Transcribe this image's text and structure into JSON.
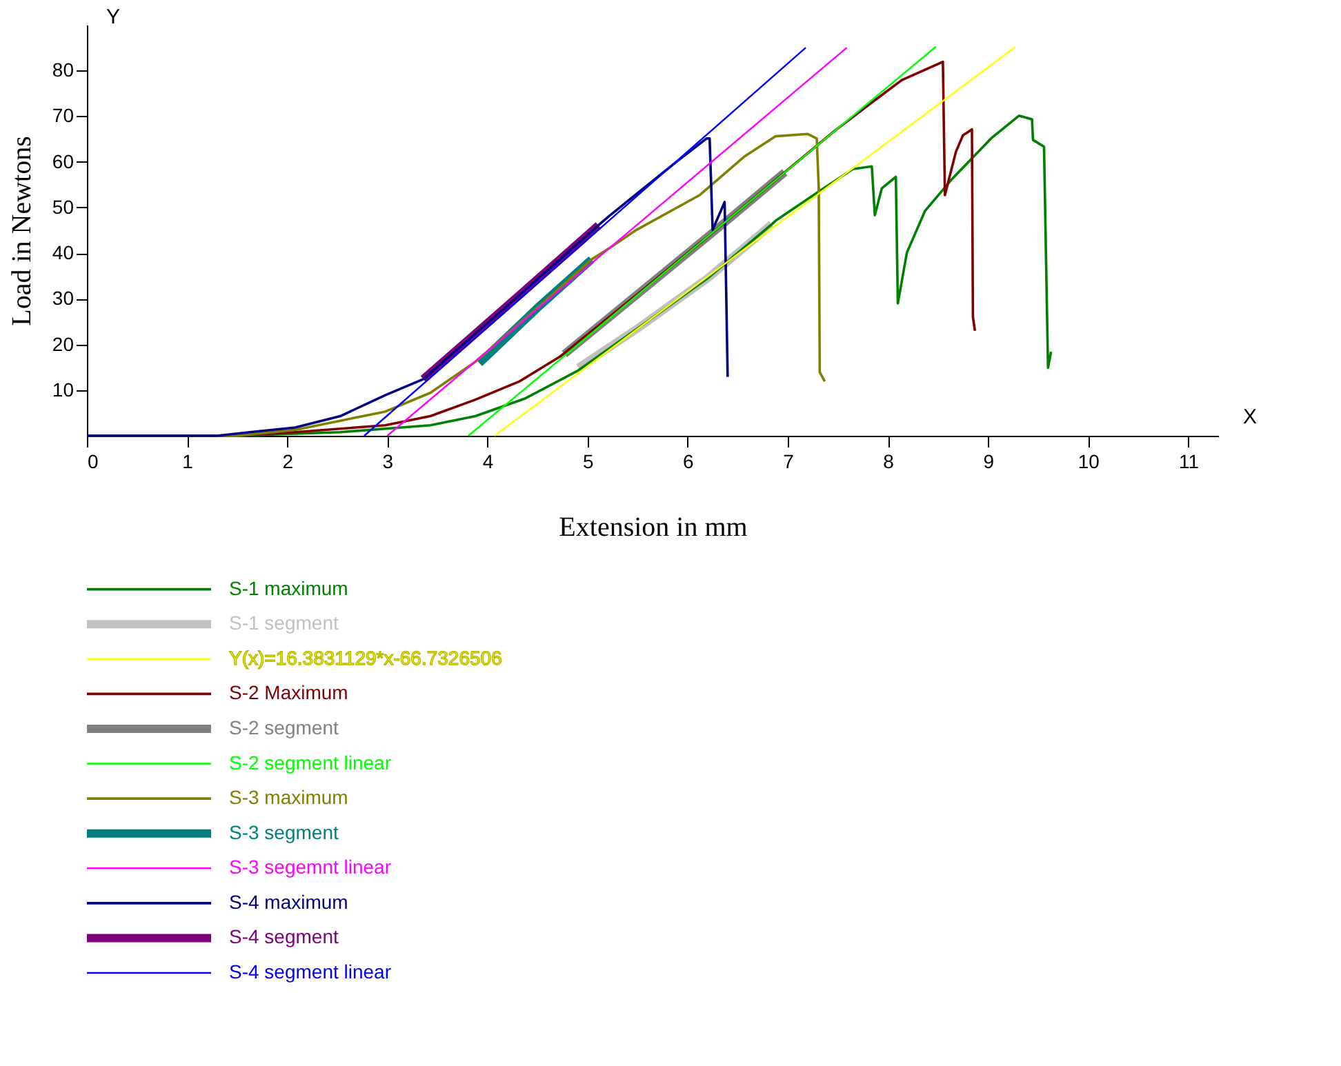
{
  "chart_data": {
    "type": "line",
    "xlabel": "Extension in mm",
    "ylabel": "Load in Newtons",
    "annotations": [
      "X",
      "Y"
    ],
    "xlim": [
      0,
      11.3
    ],
    "ylim": [
      0,
      90
    ],
    "xticks": [
      0,
      1,
      2,
      3,
      4,
      5,
      6,
      7,
      8,
      9,
      10,
      11
    ],
    "yticks": [
      10,
      20,
      30,
      40,
      50,
      60,
      70,
      80
    ],
    "grid": false,
    "legend": "bottom",
    "series": [
      {
        "name": "S-1 maximum",
        "color": "#008000",
        "x": [
          0,
          1.5,
          2.53,
          3.43,
          3.88,
          4.38,
          4.9,
          5.5,
          6.2,
          6.84,
          6.88,
          7.29,
          7.65,
          7.84,
          7.87,
          7.94,
          8.08,
          8.1,
          8.19,
          8.37,
          8.64,
          9.04,
          9.31,
          9.44,
          9.45,
          9.56,
          9.6,
          9.63
        ],
        "values": [
          0,
          0,
          0.8,
          2.3,
          4.3,
          8.2,
          14.2,
          23.5,
          34.5,
          46.3,
          47.1,
          53.2,
          58.4,
          59.0,
          48.3,
          54.2,
          56.7,
          29.0,
          40.1,
          49.2,
          56.2,
          65.3,
          70.1,
          69.3,
          64.8,
          63.3,
          14.9,
          18.4
        ]
      },
      {
        "name": "S-1 segment",
        "color": "#c0c0c0",
        "x": [
          4.91,
          5.5,
          6.2,
          6.84
        ],
        "values": [
          14.9,
          23.5,
          34.5,
          46.3
        ]
      },
      {
        "name": "Y(x)=16.3831129*x-66.7326506",
        "color": "#ffff00",
        "x": [
          4.07,
          9.27
        ],
        "values": [
          0,
          85.1
        ]
      },
      {
        "name": "S-2 Maximum",
        "color": "#800000",
        "x": [
          0,
          1.5,
          2.08,
          2.98,
          3.43,
          3.88,
          4.32,
          4.73,
          5.5,
          6.2,
          6.97,
          7.47,
          7.92,
          8.14,
          8.55,
          8.57,
          8.68,
          8.75,
          8.84,
          8.85,
          8.87
        ],
        "values": [
          0,
          0,
          0.8,
          2.3,
          4.3,
          7.9,
          11.9,
          17.4,
          31.0,
          43.6,
          57.7,
          66.8,
          74.3,
          77.9,
          81.9,
          52.7,
          62.2,
          65.8,
          67.1,
          26.0,
          23.0
        ]
      },
      {
        "name": "S-2 segment",
        "color": "#808080",
        "x": [
          4.77,
          5.5,
          6.2,
          6.97
        ],
        "values": [
          17.9,
          31.0,
          43.6,
          57.7
        ]
      },
      {
        "name": "S-2 segment linear",
        "color": "#00ff00",
        "x": [
          3.81,
          8.48
        ],
        "values": [
          0,
          85.2
        ]
      },
      {
        "name": "S-3 maximum",
        "color": "#808000",
        "x": [
          0,
          1.5,
          2.08,
          2.53,
          2.98,
          3.43,
          3.88,
          4.5,
          5.04,
          5.22,
          5.49,
          6.12,
          6.57,
          6.88,
          7.2,
          7.29,
          7.31,
          7.32,
          7.37
        ],
        "values": [
          0,
          0,
          1.3,
          3.3,
          5.3,
          9.4,
          16.2,
          28.0,
          38.6,
          41.1,
          45.1,
          52.7,
          61.2,
          65.6,
          66.1,
          65.1,
          54.2,
          13.9,
          11.9
        ]
      },
      {
        "name": "S-3 segment",
        "color": "#008080",
        "x": [
          3.92,
          4.5,
          5.04
        ],
        "values": [
          15.9,
          28.0,
          38.6
        ]
      },
      {
        "name": "S-3 segemnt linear",
        "color": "#ff00ff",
        "x": [
          3.0,
          7.59
        ],
        "values": [
          0,
          85
        ]
      },
      {
        "name": "S-4 maximum",
        "color": "#000080",
        "x": [
          0,
          1.3,
          1.63,
          2.08,
          2.53,
          2.98,
          3.36,
          4.2,
          5.11,
          5.22,
          5.9,
          6.19,
          6.22,
          6.25,
          6.37,
          6.4
        ],
        "values": [
          0,
          0,
          0.8,
          1.8,
          4.3,
          8.9,
          12.4,
          28.5,
          46.1,
          48.2,
          60.2,
          65.1,
          65.1,
          45.1,
          51.2,
          12.9
        ]
      },
      {
        "name": "S-4 segment",
        "color": "#800080",
        "x": [
          3.36,
          4.2,
          5.11
        ],
        "values": [
          12.4,
          28.5,
          46.1
        ]
      },
      {
        "name": "S-4 segment linear",
        "color": "#0000ff",
        "x": [
          2.77,
          7.18
        ],
        "values": [
          0,
          85
        ]
      }
    ]
  }
}
